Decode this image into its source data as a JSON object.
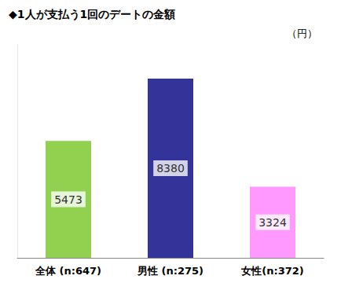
{
  "chart_data": {
    "type": "bar",
    "title": "◆1人が支払う1回のデートの金額",
    "ylabel": "（円）",
    "categories": [
      "全体 (n:647)",
      "男性 (n:275)",
      "女性(n:372)"
    ],
    "values": [
      5473,
      8380,
      3324
    ],
    "colors": [
      "#92d050",
      "#333399",
      "#ff99ff"
    ],
    "ylim": [
      0,
      10000
    ],
    "grid": false,
    "data_labels": true,
    "tick_labels": "x"
  }
}
